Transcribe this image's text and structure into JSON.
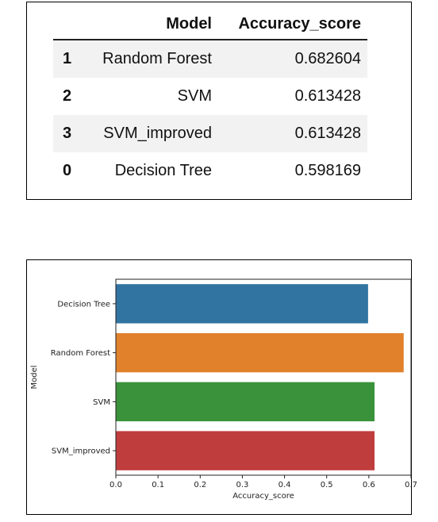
{
  "table": {
    "columns": [
      "",
      "Model",
      "Accuracy_score"
    ],
    "rows": [
      {
        "index": "1",
        "model": "Random Forest",
        "accuracy": "0.682604"
      },
      {
        "index": "2",
        "model": "SVM",
        "accuracy": "0.613428"
      },
      {
        "index": "3",
        "model": "SVM_improved",
        "accuracy": "0.613428"
      },
      {
        "index": "0",
        "model": "Decision Tree",
        "accuracy": "0.598169"
      }
    ]
  },
  "chart_data": {
    "type": "bar",
    "orientation": "horizontal",
    "categories": [
      "Decision Tree",
      "Random Forest",
      "SVM",
      "SVM_improved"
    ],
    "values": [
      0.598169,
      0.682604,
      0.613428,
      0.613428
    ],
    "colors": [
      "#3274a1",
      "#e1812c",
      "#3a923a",
      "#c03d3e"
    ],
    "xlabel": "Accuracy_score",
    "ylabel": "Model",
    "xlim": [
      0,
      0.7
    ],
    "xticks": [
      "0.0",
      "0.1",
      "0.2",
      "0.3",
      "0.4",
      "0.5",
      "0.6",
      "0.7"
    ],
    "grid": false
  }
}
